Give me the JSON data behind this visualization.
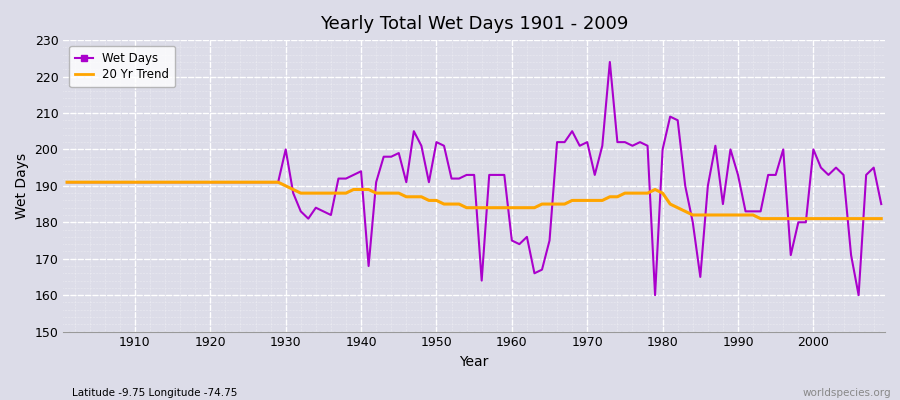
{
  "title": "Yearly Total Wet Days 1901 - 2009",
  "xlabel": "Year",
  "ylabel": "Wet Days",
  "subtitle": "Latitude -9.75 Longitude -74.75",
  "watermark": "worldspecies.org",
  "ylim": [
    150,
    230
  ],
  "yticks": [
    150,
    160,
    170,
    180,
    190,
    200,
    210,
    220,
    230
  ],
  "xlim": [
    1901,
    2009
  ],
  "line_color": "#AA00CC",
  "trend_color": "#FFA500",
  "bg_color": "#DCDCE8",
  "grid_color": "#FFFFFF",
  "years": [
    1901,
    1902,
    1903,
    1904,
    1905,
    1906,
    1907,
    1908,
    1909,
    1910,
    1911,
    1912,
    1913,
    1914,
    1915,
    1916,
    1917,
    1918,
    1919,
    1920,
    1921,
    1922,
    1923,
    1924,
    1925,
    1926,
    1927,
    1928,
    1929,
    1930,
    1931,
    1932,
    1933,
    1934,
    1935,
    1936,
    1937,
    1938,
    1939,
    1940,
    1941,
    1942,
    1943,
    1944,
    1945,
    1946,
    1947,
    1948,
    1949,
    1950,
    1951,
    1952,
    1953,
    1954,
    1955,
    1956,
    1957,
    1958,
    1959,
    1960,
    1961,
    1962,
    1963,
    1964,
    1965,
    1966,
    1967,
    1968,
    1969,
    1970,
    1971,
    1972,
    1973,
    1974,
    1975,
    1976,
    1977,
    1978,
    1979,
    1980,
    1981,
    1982,
    1983,
    1984,
    1985,
    1986,
    1987,
    1988,
    1989,
    1990,
    1991,
    1992,
    1993,
    1994,
    1995,
    1996,
    1997,
    1998,
    1999,
    2000,
    2001,
    2002,
    2003,
    2004,
    2005,
    2006,
    2007,
    2008,
    2009
  ],
  "wet_days": [
    191,
    191,
    191,
    191,
    191,
    191,
    191,
    191,
    191,
    191,
    191,
    191,
    191,
    191,
    191,
    191,
    191,
    191,
    191,
    191,
    191,
    191,
    191,
    191,
    191,
    191,
    191,
    191,
    191,
    200,
    188,
    183,
    181,
    184,
    183,
    182,
    192,
    192,
    193,
    194,
    168,
    191,
    198,
    198,
    199,
    191,
    205,
    201,
    191,
    202,
    201,
    192,
    192,
    193,
    193,
    164,
    193,
    193,
    193,
    175,
    174,
    176,
    166,
    167,
    175,
    202,
    202,
    205,
    201,
    202,
    193,
    201,
    224,
    202,
    202,
    201,
    202,
    201,
    160,
    200,
    209,
    208,
    190,
    180,
    165,
    190,
    201,
    185,
    200,
    193,
    183,
    183,
    183,
    193,
    193,
    200,
    171,
    180,
    180,
    200,
    195,
    193,
    195,
    193,
    171,
    160,
    193,
    195,
    185
  ],
  "trend": [
    191,
    191,
    191,
    191,
    191,
    191,
    191,
    191,
    191,
    191,
    191,
    191,
    191,
    191,
    191,
    191,
    191,
    191,
    191,
    191,
    191,
    191,
    191,
    191,
    191,
    191,
    191,
    191,
    191,
    190,
    189,
    188,
    188,
    188,
    188,
    188,
    188,
    188,
    189,
    189,
    189,
    188,
    188,
    188,
    188,
    187,
    187,
    187,
    186,
    186,
    185,
    185,
    185,
    184,
    184,
    184,
    184,
    184,
    184,
    184,
    184,
    184,
    184,
    185,
    185,
    185,
    185,
    186,
    186,
    186,
    186,
    186,
    187,
    187,
    188,
    188,
    188,
    188,
    189,
    188,
    185,
    184,
    183,
    182,
    182,
    182,
    182,
    182,
    182,
    182,
    182,
    182,
    181,
    181,
    181,
    181,
    181,
    181,
    181,
    181,
    181,
    181,
    181,
    181,
    181,
    181,
    181,
    181,
    181
  ]
}
